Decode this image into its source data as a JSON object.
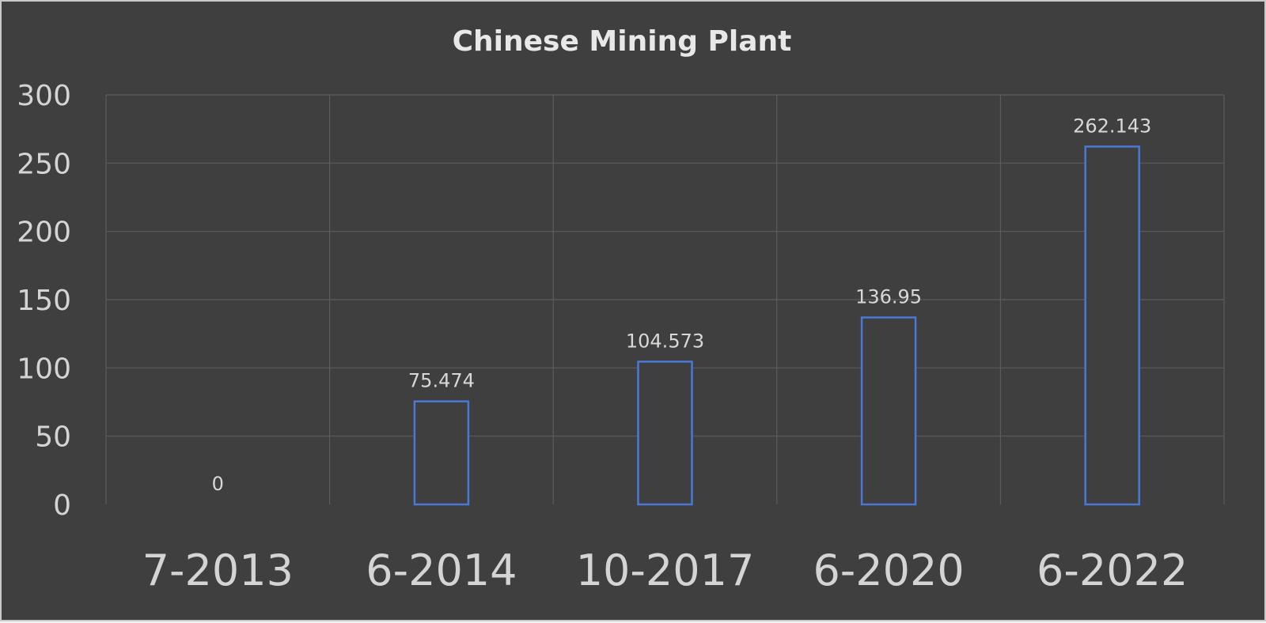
{
  "chart_data": {
    "type": "bar",
    "title": "Chinese Mining Plant",
    "categories": [
      "7-2013",
      "6-2014",
      "10-2017",
      "6-2020",
      "6-2022"
    ],
    "values": [
      0,
      75.474,
      104.573,
      136.95,
      262.143
    ],
    "data_labels": [
      "0",
      "75.474",
      "104.573",
      "136.95",
      "262.143"
    ],
    "ylim": [
      0,
      300
    ],
    "yticks": [
      0,
      50,
      100,
      150,
      200,
      250,
      300
    ],
    "grid": true,
    "legend": "none",
    "xlabel": "",
    "ylabel": ""
  },
  "colors": {
    "background": "#3f3f3f",
    "bar_outline": "#4a78d6",
    "gridline": "#5c5c5c",
    "text": "#d4d4d4"
  }
}
